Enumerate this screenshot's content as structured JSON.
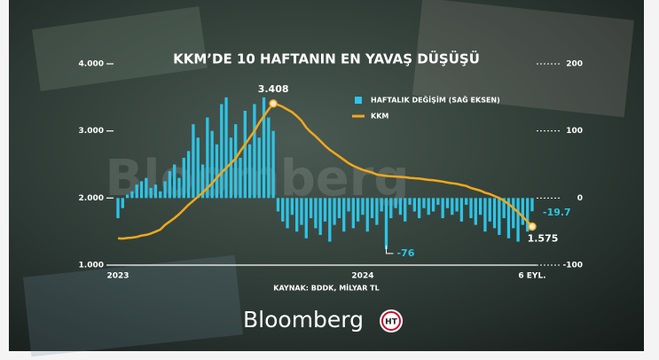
{
  "chart_data": {
    "type": "combo",
    "title": "KKM’DE 10 HAFTANIN EN YAVAŞ DÜŞÜŞÜ",
    "source": "KAYNAK: BDDK, MİLYAR TL",
    "brand": "Bloomberg",
    "logo": "HT",
    "categories": [
      "2023",
      null,
      null,
      null,
      null,
      null,
      null,
      null,
      null,
      null,
      null,
      null,
      null,
      null,
      null,
      null,
      null,
      null,
      null,
      null,
      null,
      null,
      null,
      null,
      null,
      null,
      null,
      null,
      null,
      null,
      null,
      null,
      null,
      null,
      null,
      null,
      null,
      null,
      null,
      null,
      null,
      null,
      null,
      null,
      null,
      null,
      null,
      null,
      null,
      null,
      null,
      null,
      "2024",
      null,
      null,
      null,
      null,
      null,
      null,
      null,
      null,
      null,
      null,
      null,
      null,
      null,
      null,
      null,
      null,
      null,
      null,
      null,
      null,
      null,
      null,
      null,
      null,
      null,
      null,
      null,
      null,
      null,
      null,
      null,
      null,
      null,
      null,
      null,
      "6 EYL."
    ],
    "ylim": [
      1000,
      4000
    ],
    "yticks": [
      {
        "value": 1000,
        "label": "1.000"
      },
      {
        "value": 2000,
        "label": "2.000"
      },
      {
        "value": 3000,
        "label": "3.000"
      },
      {
        "value": 4000,
        "label": "4.000"
      }
    ],
    "y2lim": [
      -100,
      200
    ],
    "y2ticks": [
      -100,
      0,
      100,
      200
    ],
    "legend": "top-right",
    "series": [
      {
        "name": "HAFTALIK DEĞİŞİM (SAĞ EKSEN)",
        "type": "bar",
        "axis": "y2",
        "color": "#2ec4e6",
        "values": [
          -30,
          -15,
          5,
          10,
          20,
          25,
          30,
          15,
          20,
          10,
          25,
          40,
          50,
          30,
          60,
          70,
          110,
          90,
          50,
          120,
          100,
          80,
          140,
          150,
          90,
          110,
          60,
          130,
          80,
          140,
          90,
          150,
          120,
          100,
          -20,
          -35,
          -45,
          -25,
          -50,
          -40,
          -60,
          -30,
          -45,
          -55,
          -35,
          -65,
          -40,
          -30,
          -50,
          -20,
          -45,
          -35,
          -25,
          -50,
          -30,
          -40,
          -20,
          -76,
          -30,
          -15,
          -25,
          -35,
          -10,
          -20,
          -30,
          -15,
          -25,
          -20,
          -10,
          -30,
          -15,
          -25,
          -20,
          -35,
          -10,
          -30,
          -40,
          -25,
          -50,
          -35,
          -45,
          -55,
          -30,
          -60,
          -45,
          -65,
          -40,
          -50,
          -19.7
        ],
        "labeled": [
          57,
          88
        ]
      },
      {
        "name": "KKM",
        "type": "line",
        "color": "#f2a81d",
        "values": [
          1400,
          1395,
          1405,
          1410,
          1420,
          1440,
          1450,
          1470,
          1500,
          1530,
          1600,
          1650,
          1700,
          1760,
          1830,
          1900,
          1960,
          2020,
          2080,
          2150,
          2220,
          2300,
          2380,
          2450,
          2520,
          2590,
          2700,
          2800,
          2900,
          3000,
          3120,
          3220,
          3320,
          3408,
          3390,
          3360,
          3320,
          3280,
          3220,
          3150,
          3050,
          2980,
          2920,
          2850,
          2780,
          2720,
          2670,
          2620,
          2570,
          2520,
          2480,
          2450,
          2420,
          2400,
          2380,
          2350,
          2340,
          2330,
          2325,
          2320,
          2315,
          2310,
          2300,
          2295,
          2290,
          2280,
          2270,
          2265,
          2255,
          2245,
          2230,
          2220,
          2210,
          2195,
          2180,
          2150,
          2130,
          2110,
          2080,
          2060,
          2030,
          2000,
          1960,
          1910,
          1850,
          1790,
          1720,
          1650,
          1575
        ],
        "value_labels": [
          null,
          null,
          null,
          null,
          null,
          null,
          null,
          null,
          null,
          null,
          null,
          null,
          null,
          null,
          null,
          null,
          null,
          null,
          null,
          null,
          null,
          null,
          null,
          null,
          null,
          null,
          null,
          null,
          null,
          null,
          null,
          null,
          null,
          "3.408",
          null,
          null,
          null,
          null,
          null,
          null,
          null,
          null,
          null,
          null,
          null,
          null,
          null,
          null,
          null,
          null,
          null,
          null,
          null,
          null,
          null,
          null,
          null,
          null,
          null,
          null,
          null,
          null,
          null,
          null,
          null,
          null,
          null,
          null,
          null,
          null,
          null,
          null,
          null,
          null,
          null,
          null,
          null,
          null,
          null,
          null,
          null,
          null,
          null,
          null,
          null,
          null,
          null,
          null,
          "1.575"
        ]
      }
    ]
  }
}
